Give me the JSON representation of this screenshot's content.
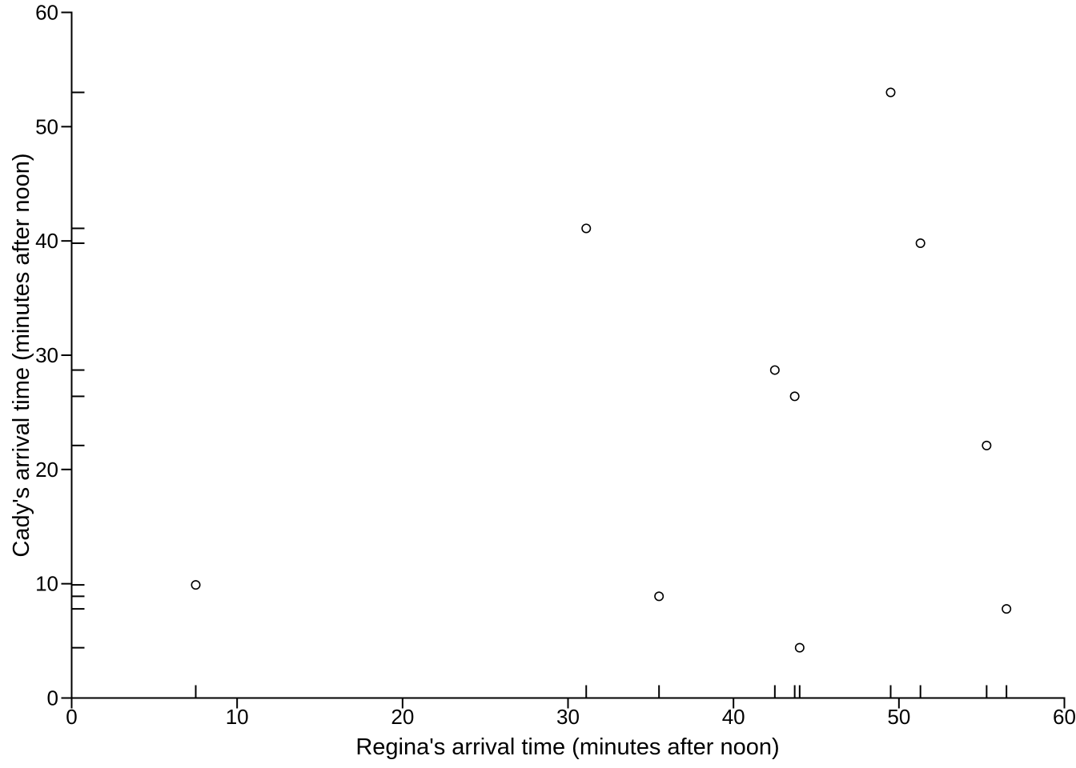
{
  "chart_data": {
    "type": "scatter",
    "xlabel": "Regina's arrival time (minutes after noon)",
    "ylabel": "Cady's arrival time (minutes after noon)",
    "xlim": [
      0,
      60
    ],
    "ylim": [
      0,
      60
    ],
    "xticks": [
      0,
      10,
      20,
      30,
      40,
      50,
      60
    ],
    "yticks": [
      0,
      10,
      20,
      30,
      40,
      50,
      60
    ],
    "grid": false,
    "legend": false,
    "marker": "open-circle",
    "rug_x": true,
    "rug_y": true,
    "points": [
      {
        "x": 7.5,
        "y": 9.9
      },
      {
        "x": 31.1,
        "y": 41.1
      },
      {
        "x": 35.5,
        "y": 8.9
      },
      {
        "x": 42.5,
        "y": 28.7
      },
      {
        "x": 43.7,
        "y": 26.4
      },
      {
        "x": 44.0,
        "y": 4.4
      },
      {
        "x": 49.5,
        "y": 53.0
      },
      {
        "x": 51.3,
        "y": 39.8
      },
      {
        "x": 55.3,
        "y": 22.1
      },
      {
        "x": 56.5,
        "y": 7.8
      }
    ],
    "colors": {
      "axis": "#000000",
      "marker_stroke": "#000000",
      "background": "#ffffff"
    }
  }
}
